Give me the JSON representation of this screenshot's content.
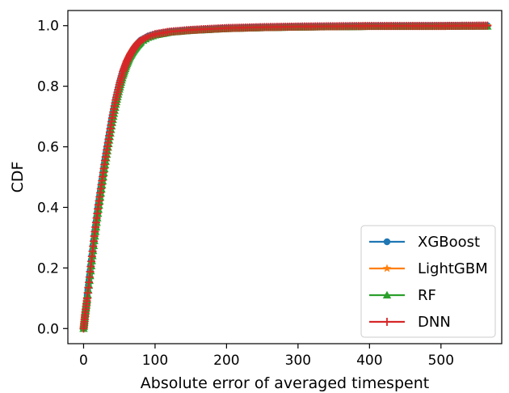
{
  "chart_data": {
    "type": "line",
    "title": "",
    "xlabel": "Absolute error of averaged timespent",
    "ylabel": "CDF",
    "xlim": [
      -22,
      585
    ],
    "ylim": [
      -0.05,
      1.05
    ],
    "xticks": [
      0,
      100,
      200,
      300,
      400,
      500
    ],
    "yticks": [
      0.0,
      0.2,
      0.4,
      0.6,
      0.8,
      1.0
    ],
    "xtick_labels": [
      "0",
      "100",
      "200",
      "300",
      "400",
      "500"
    ],
    "ytick_labels": [
      "0.0",
      "0.2",
      "0.4",
      "0.6",
      "0.8",
      "1.0"
    ],
    "grid": false,
    "legend_position": "lower-right",
    "series": [
      {
        "name": "XGBoost",
        "color": "#1f77b4",
        "marker": "circle",
        "points": [
          [
            0,
            0.0
          ],
          [
            2,
            0.05
          ],
          [
            5,
            0.11
          ],
          [
            10,
            0.21
          ],
          [
            15,
            0.31
          ],
          [
            20,
            0.4
          ],
          [
            25,
            0.48
          ],
          [
            30,
            0.56
          ],
          [
            35,
            0.63
          ],
          [
            40,
            0.7
          ],
          [
            45,
            0.76
          ],
          [
            50,
            0.81
          ],
          [
            55,
            0.85
          ],
          [
            60,
            0.88
          ],
          [
            65,
            0.905
          ],
          [
            70,
            0.925
          ],
          [
            75,
            0.94
          ],
          [
            80,
            0.952
          ],
          [
            90,
            0.965
          ],
          [
            100,
            0.972
          ],
          [
            120,
            0.98
          ],
          [
            150,
            0.986
          ],
          [
            200,
            0.992
          ],
          [
            250,
            0.995
          ],
          [
            300,
            0.997
          ],
          [
            400,
            0.999
          ],
          [
            500,
            1.0
          ],
          [
            565,
            1.0
          ]
        ]
      },
      {
        "name": "LightGBM",
        "color": "#ff7f0e",
        "marker": "star",
        "points": [
          [
            0,
            0.0
          ],
          [
            2,
            0.045
          ],
          [
            5,
            0.1
          ],
          [
            10,
            0.2
          ],
          [
            15,
            0.3
          ],
          [
            20,
            0.39
          ],
          [
            25,
            0.47
          ],
          [
            30,
            0.55
          ],
          [
            35,
            0.62
          ],
          [
            40,
            0.69
          ],
          [
            45,
            0.75
          ],
          [
            50,
            0.8
          ],
          [
            55,
            0.845
          ],
          [
            60,
            0.878
          ],
          [
            65,
            0.903
          ],
          [
            70,
            0.922
          ],
          [
            75,
            0.938
          ],
          [
            80,
            0.95
          ],
          [
            90,
            0.963
          ],
          [
            100,
            0.971
          ],
          [
            120,
            0.979
          ],
          [
            150,
            0.985
          ],
          [
            200,
            0.991
          ],
          [
            250,
            0.994
          ],
          [
            300,
            0.996
          ],
          [
            400,
            0.998
          ],
          [
            500,
            0.999
          ],
          [
            565,
            1.0
          ]
        ]
      },
      {
        "name": "RF",
        "color": "#2ca02c",
        "marker": "triangle",
        "points": [
          [
            0,
            0.0
          ],
          [
            2,
            0.04
          ],
          [
            5,
            0.095
          ],
          [
            10,
            0.19
          ],
          [
            15,
            0.29
          ],
          [
            20,
            0.38
          ],
          [
            25,
            0.46
          ],
          [
            30,
            0.54
          ],
          [
            35,
            0.61
          ],
          [
            40,
            0.68
          ],
          [
            45,
            0.74
          ],
          [
            50,
            0.79
          ],
          [
            55,
            0.835
          ],
          [
            60,
            0.87
          ],
          [
            65,
            0.898
          ],
          [
            70,
            0.918
          ],
          [
            75,
            0.934
          ],
          [
            80,
            0.947
          ],
          [
            90,
            0.961
          ],
          [
            100,
            0.969
          ],
          [
            120,
            0.978
          ],
          [
            150,
            0.984
          ],
          [
            200,
            0.99
          ],
          [
            250,
            0.993
          ],
          [
            300,
            0.995
          ],
          [
            400,
            0.997
          ],
          [
            500,
            0.998
          ],
          [
            565,
            0.998
          ]
        ]
      },
      {
        "name": "DNN",
        "color": "#d62728",
        "marker": "plus",
        "points": [
          [
            0,
            0.0
          ],
          [
            2,
            0.045
          ],
          [
            5,
            0.1
          ],
          [
            10,
            0.205
          ],
          [
            15,
            0.305
          ],
          [
            20,
            0.395
          ],
          [
            25,
            0.475
          ],
          [
            30,
            0.555
          ],
          [
            35,
            0.625
          ],
          [
            40,
            0.695
          ],
          [
            45,
            0.755
          ],
          [
            50,
            0.805
          ],
          [
            55,
            0.848
          ],
          [
            60,
            0.88
          ],
          [
            65,
            0.904
          ],
          [
            70,
            0.923
          ],
          [
            75,
            0.939
          ],
          [
            80,
            0.951
          ],
          [
            90,
            0.964
          ],
          [
            100,
            0.972
          ],
          [
            120,
            0.98
          ],
          [
            150,
            0.986
          ],
          [
            200,
            0.992
          ],
          [
            250,
            0.995
          ],
          [
            300,
            0.997
          ],
          [
            400,
            0.999
          ],
          [
            500,
            0.999
          ],
          [
            565,
            1.0
          ]
        ]
      }
    ]
  }
}
